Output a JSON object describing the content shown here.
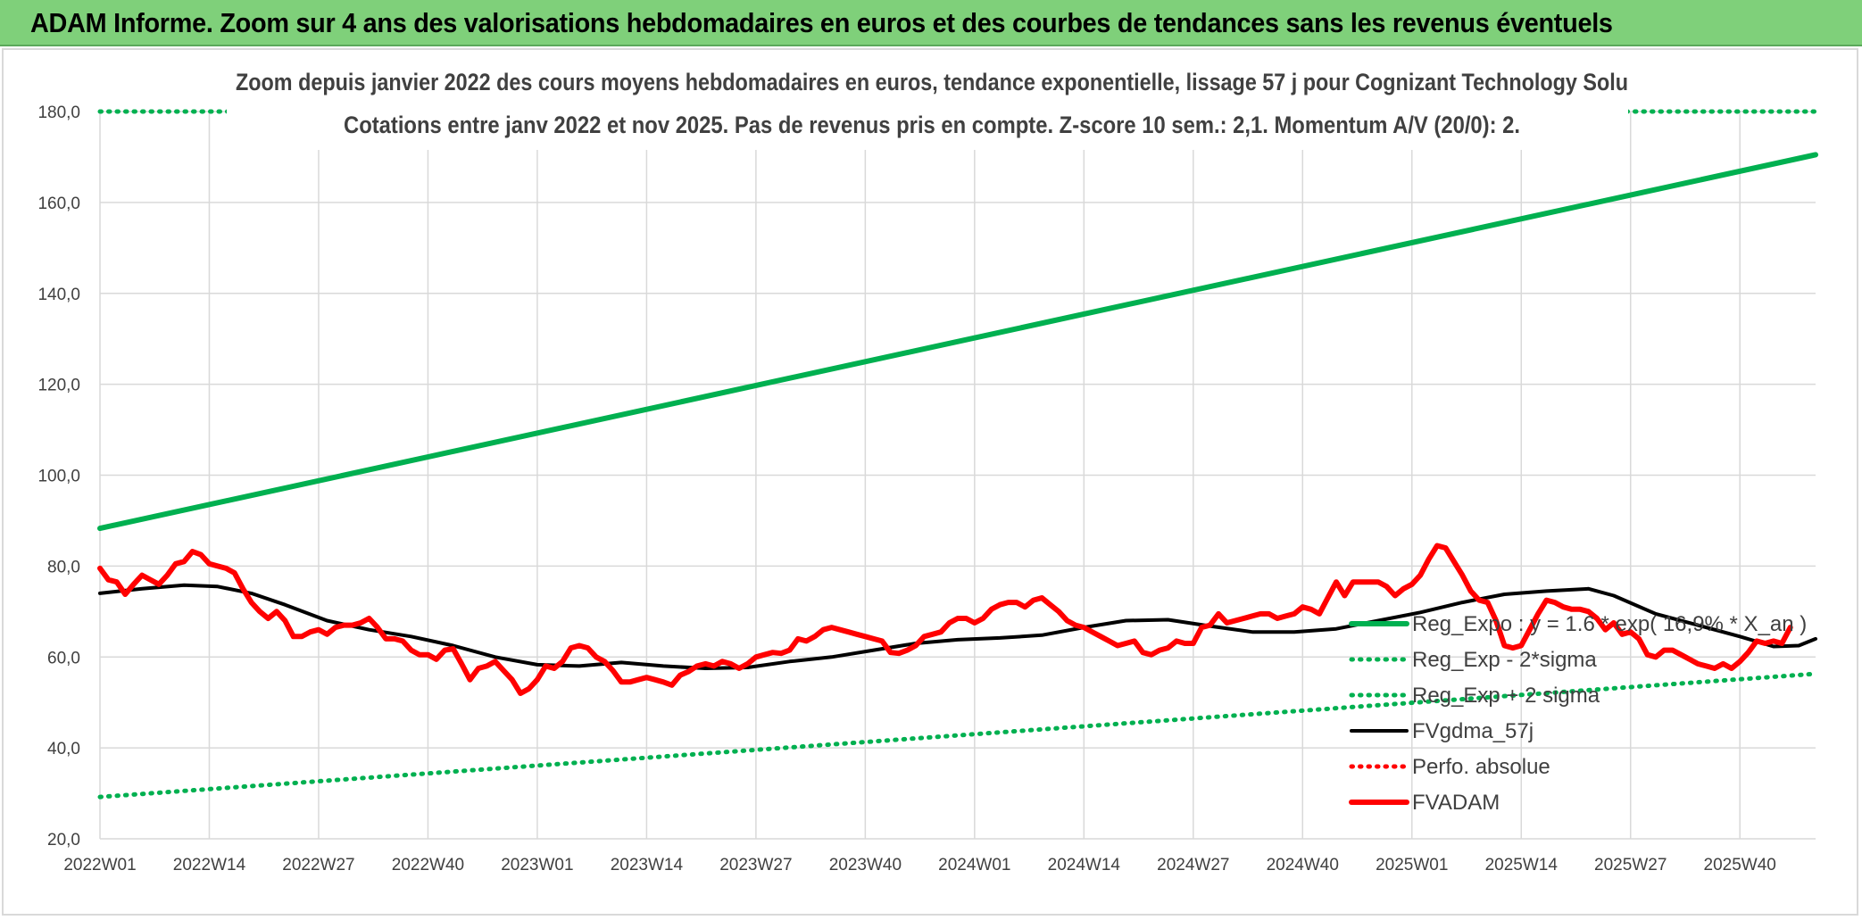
{
  "banner": {
    "title": "ADAM Informe. Zoom sur 4 ans des valorisations hebdomadaires en euros et des courbes de tendances sans les revenus éventuels",
    "color": "#7fd07a"
  },
  "chart_data": {
    "type": "line",
    "subtitle_line1": "Zoom depuis janvier 2022 des cours moyens hebdomadaires en euros, tendance exponentielle, lissage 57 j pour Cognizant Technology Solu",
    "subtitle_line2": "Cotations entre janv 2022 et nov 2025. Pas de revenus pris en compte. Z-score 10 sem.: 2,1. Momentum A/V (20/0): 2.",
    "ylim": [
      20,
      180
    ],
    "yticks": [
      "20,0",
      "40,0",
      "60,0",
      "80,0",
      "100,0",
      "120,0",
      "140,0",
      "160,0",
      "180,0"
    ],
    "x_ticks": [
      "2022W01",
      "2022W14",
      "2022W27",
      "2022W40",
      "2023W01",
      "2023W14",
      "2023W27",
      "2023W40",
      "2024W01",
      "2024W14",
      "2024W27",
      "2024W40",
      "2025W01",
      "2025W14",
      "2025W27",
      "2025W40"
    ],
    "week_count": 205,
    "grid": true,
    "legend_position": "right",
    "series": [
      {
        "name": "Reg_Expo : y = 1.6 * exp( 16,9% * X_an )",
        "color": "#00b050",
        "style": "solid",
        "points": [
          [
            0,
            88.3
          ],
          [
            204,
            170.5
          ]
        ]
      },
      {
        "name": "Reg_Exp - 2*sigma",
        "color": "#00b050",
        "style": "dotted",
        "points": [
          [
            0,
            29.2
          ],
          [
            204,
            56.3
          ]
        ]
      },
      {
        "name": "Reg_Exp + 2 sigma",
        "color": "#00b050",
        "style": "dotted",
        "points": [
          [
            0,
            180
          ],
          [
            204,
            180
          ]
        ]
      },
      {
        "name": "FVgdma_57j",
        "color": "#000000",
        "style": "solid",
        "points": [
          [
            0,
            74.0
          ],
          [
            5,
            75.0
          ],
          [
            10,
            75.8
          ],
          [
            14,
            75.5
          ],
          [
            18,
            74.0
          ],
          [
            22,
            71.5
          ],
          [
            27,
            68.0
          ],
          [
            32,
            66.0
          ],
          [
            37,
            64.5
          ],
          [
            42,
            62.5
          ],
          [
            47,
            60.0
          ],
          [
            52,
            58.3
          ],
          [
            57,
            58.0
          ],
          [
            62,
            58.8
          ],
          [
            67,
            58.0
          ],
          [
            72,
            57.5
          ],
          [
            77,
            57.7
          ],
          [
            82,
            59.0
          ],
          [
            87,
            60.0
          ],
          [
            92,
            61.5
          ],
          [
            97,
            63.0
          ],
          [
            102,
            63.8
          ],
          [
            107,
            64.2
          ],
          [
            112,
            64.8
          ],
          [
            117,
            66.5
          ],
          [
            122,
            68.0
          ],
          [
            127,
            68.2
          ],
          [
            132,
            66.8
          ],
          [
            137,
            65.5
          ],
          [
            142,
            65.5
          ],
          [
            147,
            66.2
          ],
          [
            152,
            68.0
          ],
          [
            157,
            69.8
          ],
          [
            162,
            72.0
          ],
          [
            167,
            73.8
          ],
          [
            172,
            74.5
          ],
          [
            177,
            75.0
          ],
          [
            180,
            73.5
          ],
          [
            185,
            69.5
          ],
          [
            190,
            67.0
          ],
          [
            195,
            64.5
          ],
          [
            199,
            62.3
          ],
          [
            202,
            62.5
          ],
          [
            204,
            64.0
          ]
        ]
      },
      {
        "name": "Perfo. absolue",
        "color": "#ff0000",
        "style": "dotted",
        "points": []
      },
      {
        "name": "FVADAM",
        "color": "#ff0000",
        "style": "solid",
        "points": [
          [
            0,
            79.5
          ],
          [
            1,
            77.0
          ],
          [
            2,
            76.5
          ],
          [
            3,
            73.8
          ],
          [
            4,
            76.0
          ],
          [
            5,
            78.0
          ],
          [
            6,
            77.0
          ],
          [
            7,
            76.0
          ],
          [
            8,
            78.0
          ],
          [
            9,
            80.5
          ],
          [
            10,
            81.0
          ],
          [
            11,
            83.2
          ],
          [
            12,
            82.5
          ],
          [
            13,
            80.5
          ],
          [
            14,
            80.0
          ],
          [
            15,
            79.5
          ],
          [
            16,
            78.5
          ],
          [
            17,
            75.0
          ],
          [
            18,
            72.0
          ],
          [
            19,
            70.0
          ],
          [
            20,
            68.5
          ],
          [
            21,
            70.0
          ],
          [
            22,
            68.0
          ],
          [
            23,
            64.5
          ],
          [
            24,
            64.5
          ],
          [
            25,
            65.5
          ],
          [
            26,
            66.0
          ],
          [
            27,
            65.0
          ],
          [
            28,
            66.5
          ],
          [
            29,
            67.0
          ],
          [
            30,
            67.0
          ],
          [
            31,
            67.5
          ],
          [
            32,
            68.5
          ],
          [
            33,
            66.5
          ],
          [
            34,
            64.0
          ],
          [
            35,
            64.0
          ],
          [
            36,
            63.5
          ],
          [
            37,
            61.5
          ],
          [
            38,
            60.5
          ],
          [
            39,
            60.5
          ],
          [
            40,
            59.5
          ],
          [
            41,
            61.5
          ],
          [
            42,
            61.8
          ],
          [
            43,
            58.5
          ],
          [
            44,
            55.0
          ],
          [
            45,
            57.5
          ],
          [
            46,
            58.0
          ],
          [
            47,
            59.0
          ],
          [
            48,
            57.0
          ],
          [
            49,
            55.0
          ],
          [
            50,
            52.0
          ],
          [
            51,
            53.0
          ],
          [
            52,
            55.0
          ],
          [
            53,
            58.0
          ],
          [
            54,
            57.5
          ],
          [
            55,
            59.0
          ],
          [
            56,
            62.0
          ],
          [
            57,
            62.5
          ],
          [
            58,
            62.0
          ],
          [
            59,
            60.0
          ],
          [
            60,
            59.0
          ],
          [
            61,
            57.0
          ],
          [
            62,
            54.5
          ],
          [
            63,
            54.5
          ],
          [
            64,
            55.0
          ],
          [
            65,
            55.5
          ],
          [
            66,
            55.0
          ],
          [
            67,
            54.5
          ],
          [
            68,
            53.8
          ],
          [
            69,
            56.0
          ],
          [
            70,
            56.8
          ],
          [
            71,
            58.0
          ],
          [
            72,
            58.5
          ],
          [
            73,
            58.0
          ],
          [
            74,
            59.0
          ],
          [
            75,
            58.5
          ],
          [
            76,
            57.5
          ],
          [
            77,
            58.5
          ],
          [
            78,
            60.0
          ],
          [
            79,
            60.5
          ],
          [
            80,
            61.0
          ],
          [
            81,
            60.8
          ],
          [
            82,
            61.5
          ],
          [
            83,
            64.0
          ],
          [
            84,
            63.5
          ],
          [
            85,
            64.5
          ],
          [
            86,
            66.0
          ],
          [
            87,
            66.5
          ],
          [
            88,
            66.0
          ],
          [
            89,
            65.5
          ],
          [
            90,
            65.0
          ],
          [
            91,
            64.5
          ],
          [
            92,
            64.0
          ],
          [
            93,
            63.5
          ],
          [
            94,
            61.0
          ],
          [
            95,
            60.8
          ],
          [
            96,
            61.5
          ],
          [
            97,
            62.5
          ],
          [
            98,
            64.5
          ],
          [
            99,
            65.0
          ],
          [
            100,
            65.5
          ],
          [
            101,
            67.5
          ],
          [
            102,
            68.5
          ],
          [
            103,
            68.5
          ],
          [
            104,
            67.5
          ],
          [
            105,
            68.5
          ],
          [
            106,
            70.5
          ],
          [
            107,
            71.5
          ],
          [
            108,
            72.0
          ],
          [
            109,
            72.0
          ],
          [
            110,
            71.0
          ],
          [
            111,
            72.5
          ],
          [
            112,
            73.0
          ],
          [
            113,
            71.5
          ],
          [
            114,
            70.0
          ],
          [
            115,
            68.0
          ],
          [
            116,
            67.0
          ],
          [
            117,
            66.5
          ],
          [
            118,
            65.5
          ],
          [
            119,
            64.5
          ],
          [
            120,
            63.5
          ],
          [
            121,
            62.5
          ],
          [
            122,
            63.0
          ],
          [
            123,
            63.5
          ],
          [
            124,
            61.0
          ],
          [
            125,
            60.5
          ],
          [
            126,
            61.5
          ],
          [
            127,
            62.0
          ],
          [
            128,
            63.5
          ],
          [
            129,
            63.0
          ],
          [
            130,
            63.0
          ],
          [
            131,
            66.5
          ],
          [
            132,
            67.0
          ],
          [
            133,
            69.5
          ],
          [
            134,
            67.5
          ],
          [
            135,
            68.0
          ],
          [
            136,
            68.5
          ],
          [
            137,
            69.0
          ],
          [
            138,
            69.5
          ],
          [
            139,
            69.5
          ],
          [
            140,
            68.5
          ],
          [
            141,
            69.0
          ],
          [
            142,
            69.5
          ],
          [
            143,
            71.0
          ],
          [
            144,
            70.5
          ],
          [
            145,
            69.5
          ],
          [
            146,
            73.0
          ],
          [
            147,
            76.5
          ],
          [
            148,
            73.5
          ],
          [
            149,
            76.5
          ],
          [
            150,
            76.5
          ],
          [
            151,
            76.5
          ],
          [
            152,
            76.5
          ],
          [
            153,
            75.5
          ],
          [
            154,
            73.5
          ],
          [
            155,
            75.0
          ],
          [
            156,
            76.0
          ],
          [
            157,
            78.0
          ],
          [
            158,
            81.5
          ],
          [
            159,
            84.5
          ],
          [
            160,
            84.0
          ],
          [
            161,
            81.0
          ],
          [
            162,
            78.0
          ],
          [
            163,
            74.5
          ],
          [
            164,
            72.5
          ],
          [
            165,
            72.0
          ],
          [
            166,
            68.0
          ],
          [
            167,
            62.5
          ],
          [
            168,
            62.0
          ],
          [
            169,
            62.5
          ],
          [
            170,
            66.0
          ],
          [
            171,
            69.5
          ],
          [
            172,
            72.5
          ],
          [
            173,
            72.0
          ],
          [
            174,
            71.0
          ],
          [
            175,
            70.5
          ],
          [
            176,
            70.5
          ],
          [
            177,
            70.0
          ],
          [
            178,
            68.5
          ],
          [
            179,
            66.0
          ],
          [
            180,
            67.5
          ],
          [
            181,
            65.0
          ],
          [
            182,
            65.5
          ],
          [
            183,
            64.0
          ],
          [
            184,
            60.5
          ],
          [
            185,
            60.0
          ],
          [
            186,
            61.5
          ],
          [
            187,
            61.5
          ],
          [
            188,
            60.5
          ],
          [
            189,
            59.5
          ],
          [
            190,
            58.5
          ],
          [
            191,
            58.0
          ],
          [
            192,
            57.5
          ],
          [
            193,
            58.5
          ],
          [
            194,
            57.5
          ],
          [
            195,
            59.0
          ],
          [
            196,
            61.0
          ],
          [
            197,
            63.5
          ],
          [
            198,
            63.0
          ],
          [
            199,
            63.5
          ],
          [
            200,
            63.0
          ],
          [
            201,
            66.5
          ]
        ]
      }
    ]
  }
}
